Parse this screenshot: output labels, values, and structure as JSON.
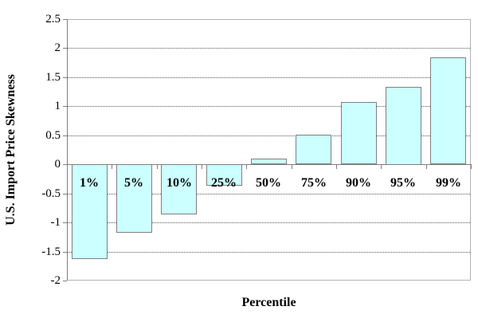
{
  "chart_data": {
    "type": "bar",
    "title": "",
    "xlabel": "Percentile",
    "ylabel": "U.S. Import Price Skewness",
    "categories": [
      "1%",
      "5%",
      "10%",
      "25%",
      "50%",
      "75%",
      "90%",
      "95%",
      "99%"
    ],
    "values": [
      -1.63,
      -1.18,
      -0.86,
      -0.37,
      0.1,
      0.51,
      1.07,
      1.34,
      1.84
    ],
    "ylim": [
      -2,
      2.5
    ],
    "ytick_labels": [
      "2.5",
      "2",
      "1.5",
      "1",
      "0.5",
      "0",
      "-0.5",
      "-1",
      "-1.5",
      "-2"
    ],
    "grid": "horizontal-dotted",
    "legend": "none",
    "colors": {
      "bar_fill": "#CCFFFF",
      "bar_border": "#808080",
      "axis": "#7F7F7F",
      "plot_border": "#B3B3B3",
      "gridline": "#595959",
      "text": "#000000"
    }
  }
}
